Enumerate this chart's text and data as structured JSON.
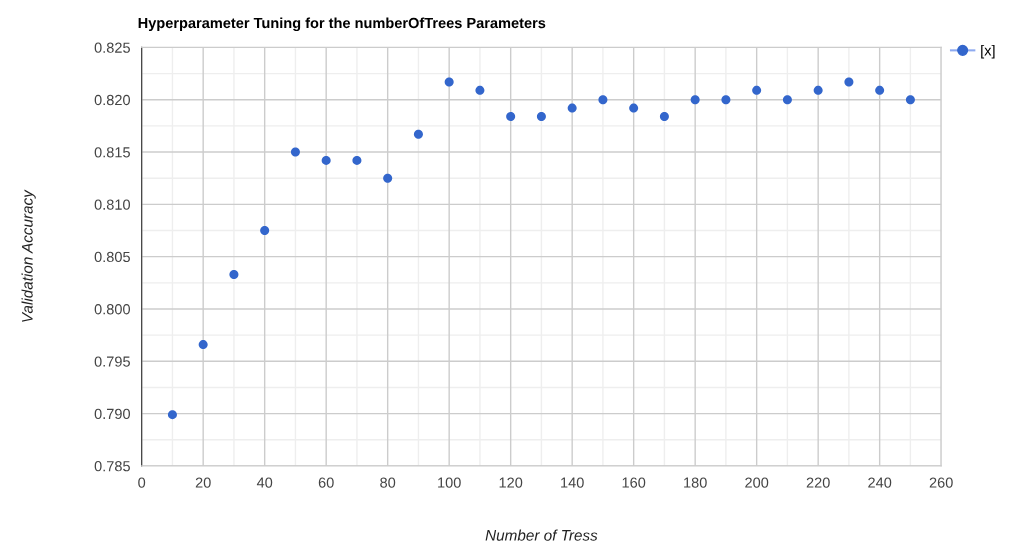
{
  "chart_data": {
    "type": "scatter",
    "title": "Hyperparameter Tuning for the numberOfTrees Parameters",
    "xlabel": "Number of Tress",
    "ylabel": "Validation Accuracy",
    "x": [
      10,
      20,
      30,
      40,
      50,
      60,
      70,
      80,
      90,
      100,
      110,
      120,
      130,
      140,
      150,
      160,
      170,
      180,
      190,
      200,
      210,
      220,
      230,
      240,
      250
    ],
    "series": [
      {
        "name": "[x]",
        "color": "#3366cc",
        "values": [
          0.7899,
          0.7966,
          0.8033,
          0.8075,
          0.815,
          0.8142,
          0.8142,
          0.8125,
          0.8167,
          0.8217,
          0.8209,
          0.8184,
          0.8184,
          0.8192,
          0.82,
          0.8192,
          0.8184,
          0.82,
          0.82,
          0.8209,
          0.82,
          0.8209,
          0.8217,
          0.8209,
          0.82
        ]
      }
    ],
    "xlim": [
      0,
      260
    ],
    "xticks": [
      0,
      20,
      40,
      60,
      80,
      100,
      120,
      140,
      160,
      180,
      200,
      220,
      240,
      260
    ],
    "ylim": [
      0.785,
      0.825
    ],
    "yticks": [
      0.785,
      {
        "value": 0.79,
        "label": "0.790"
      },
      0.795,
      {
        "value": 0.8,
        "label": "0.800"
      },
      0.805,
      {
        "value": 0.81,
        "label": "0.810"
      },
      0.815,
      {
        "value": 0.82,
        "label": "0.820"
      },
      0.825
    ],
    "grid": true,
    "legend": "top right",
    "marker": "circle"
  }
}
